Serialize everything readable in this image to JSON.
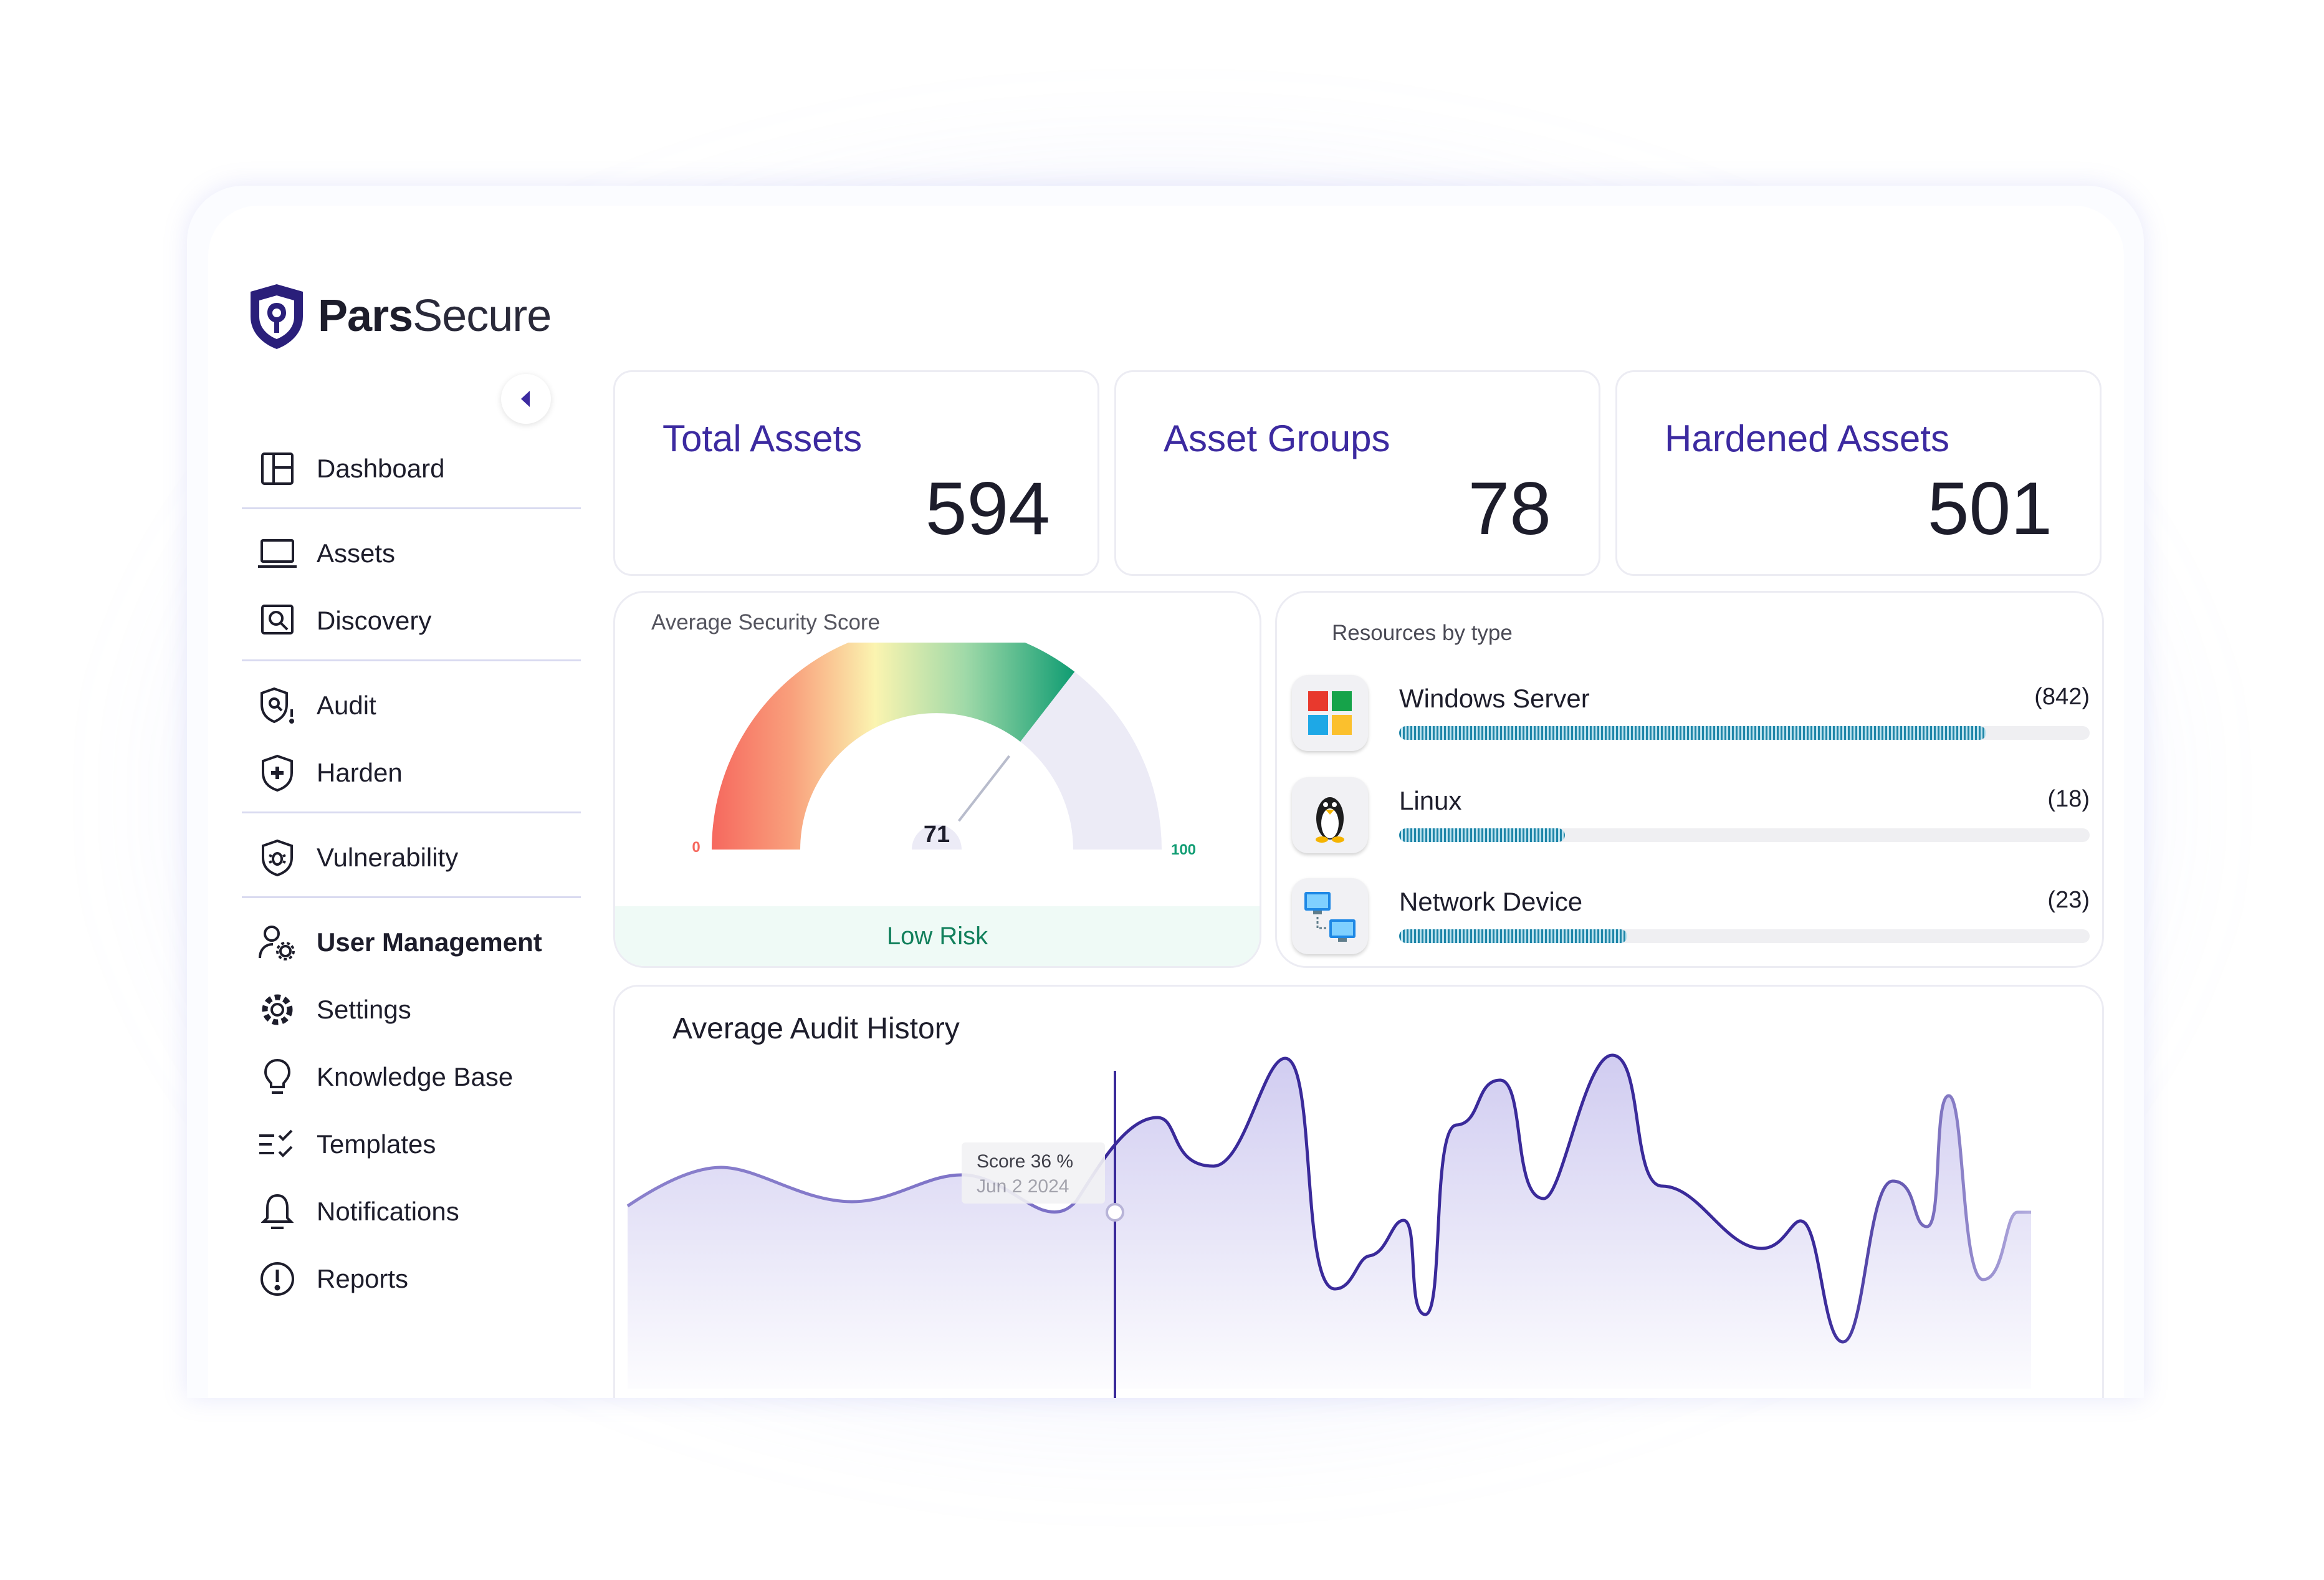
{
  "brand": {
    "name_bold": "Pars",
    "name_light": "Secure"
  },
  "sidebar": {
    "items": [
      {
        "label": "Dashboard",
        "icon": "dashboard-icon"
      },
      {
        "label": "Assets",
        "icon": "laptop-icon"
      },
      {
        "label": "Discovery",
        "icon": "discovery-search-icon"
      },
      {
        "label": "Audit",
        "icon": "audit-shield-icon"
      },
      {
        "label": "Harden",
        "icon": "shield-plus-icon"
      },
      {
        "label": "Vulnerability",
        "icon": "bug-shield-icon"
      },
      {
        "label": "User Management",
        "icon": "user-gear-icon"
      },
      {
        "label": "Settings",
        "icon": "gear-icon"
      },
      {
        "label": "Knowledge Base",
        "icon": "lightbulb-icon"
      },
      {
        "label": "Templates",
        "icon": "checklist-icon"
      },
      {
        "label": "Notifications",
        "icon": "bell-icon"
      },
      {
        "label": "Reports",
        "icon": "alert-circle-icon"
      }
    ]
  },
  "stats": {
    "total_assets": {
      "title": "Total Assets",
      "value": "594"
    },
    "asset_groups": {
      "title": "Asset Groups",
      "value": "78"
    },
    "hardened_assets": {
      "title": "Hardened Assets",
      "value": "501"
    }
  },
  "security_score": {
    "title": "Average Security Score",
    "score": 71,
    "score_label": "71",
    "min_label": "0",
    "max_label": "100",
    "risk_label": "Low Risk"
  },
  "resources": {
    "title": "Resources by type",
    "items": [
      {
        "name": "Windows Server",
        "count_label": "(842)",
        "count": 842,
        "fill_fraction": 0.85,
        "icon": "windows-icon"
      },
      {
        "name": "Linux",
        "count_label": "(18)",
        "count": 18,
        "fill_fraction": 0.24,
        "icon": "linux-penguin-icon"
      },
      {
        "name": "Network Device",
        "count_label": "(23)",
        "count": 23,
        "fill_fraction": 0.33,
        "icon": "network-device-icon"
      }
    ]
  },
  "audit_history": {
    "title": "Average Audit History",
    "tooltip": {
      "score": "Score 36 %",
      "date": "Jun 2 2024"
    }
  },
  "colors": {
    "accent": "#3c2aa0",
    "gauge_red": "#f6685e",
    "gauge_green": "#12a07a",
    "bar": "#1f86a8",
    "line": "#3a2a9a"
  }
}
